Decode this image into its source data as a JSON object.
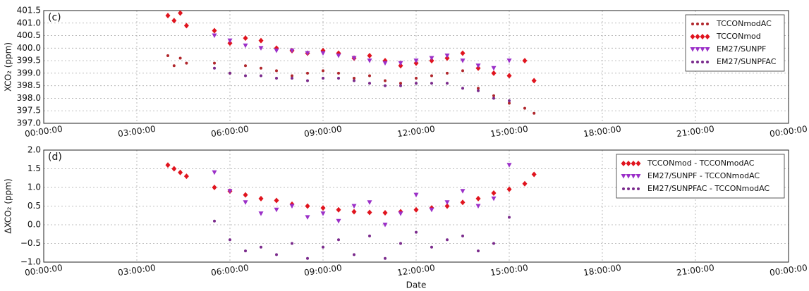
{
  "chart_data": [
    {
      "type": "scatter",
      "panel_label": "(c)",
      "ylabel": "XCO₂ (ppm)",
      "legend": "upper right",
      "grid": true,
      "xlim": [
        0,
        24
      ],
      "xticks": [
        {
          "value": 0,
          "label": "00:00:00"
        },
        {
          "value": 3,
          "label": "03:00:00"
        },
        {
          "value": 6,
          "label": "06:00:00"
        },
        {
          "value": 9,
          "label": "09:00:00"
        },
        {
          "value": 12,
          "label": "12:00:00"
        },
        {
          "value": 15,
          "label": "15:00:00"
        },
        {
          "value": 18,
          "label": "18:00:00"
        },
        {
          "value": 21,
          "label": "21:00:00"
        },
        {
          "value": 24,
          "label": "00:00:00"
        }
      ],
      "ylim": [
        397.0,
        401.5
      ],
      "yticks": [
        {
          "value": 397,
          "label": "397.0"
        },
        397.5,
        {
          "value": 398,
          "label": "398.0"
        },
        398.5,
        {
          "value": 399,
          "label": "399.0"
        },
        399.5,
        {
          "value": 400,
          "label": "400.0"
        },
        400.5,
        {
          "value": 401,
          "label": "401.0"
        },
        401.5
      ],
      "series": [
        {
          "name": "TCCONmodAC",
          "color": "#b0262b",
          "marker": "dot",
          "x": [
            4.0,
            4.2,
            4.4,
            4.6,
            5.5,
            6.0,
            6.5,
            7.0,
            7.5,
            8.0,
            8.5,
            9.0,
            9.5,
            10.0,
            10.5,
            11.0,
            11.5,
            12.0,
            12.5,
            13.0,
            13.5,
            14.0,
            14.5,
            15.0,
            15.5,
            15.8
          ],
          "values": [
            399.7,
            399.3,
            399.6,
            399.4,
            399.4,
            399.0,
            399.3,
            399.2,
            399.1,
            398.9,
            399.0,
            399.1,
            399.0,
            398.8,
            398.9,
            398.7,
            398.6,
            398.8,
            398.9,
            399.0,
            399.1,
            398.4,
            398.1,
            397.8,
            397.6,
            397.4
          ]
        },
        {
          "name": "TCCONmod",
          "color": "#e0141e",
          "marker": "diamond",
          "x": [
            4.0,
            4.2,
            4.4,
            4.6,
            5.5,
            6.0,
            6.5,
            7.0,
            7.5,
            8.0,
            8.5,
            9.0,
            9.5,
            10.0,
            10.5,
            11.0,
            11.5,
            12.0,
            12.5,
            13.0,
            13.5,
            14.0,
            14.5,
            15.0,
            15.5,
            15.8
          ],
          "values": [
            401.3,
            401.1,
            401.4,
            400.9,
            400.7,
            400.2,
            400.4,
            400.3,
            400.0,
            399.9,
            399.8,
            399.9,
            399.8,
            399.6,
            399.7,
            399.5,
            399.3,
            399.4,
            399.5,
            399.6,
            399.8,
            399.2,
            399.0,
            398.9,
            399.5,
            398.7
          ]
        },
        {
          "name": "EM27/SUNPF",
          "color": "#9b30c8",
          "marker": "triangle",
          "x": [
            5.5,
            6.0,
            6.5,
            7.0,
            7.5,
            8.0,
            8.5,
            9.0,
            9.5,
            10.0,
            10.5,
            11.0,
            11.5,
            12.0,
            12.5,
            13.0,
            13.5,
            14.0,
            14.5,
            15.0
          ],
          "values": [
            400.5,
            400.3,
            400.1,
            400.0,
            399.9,
            399.9,
            399.8,
            399.8,
            399.7,
            399.6,
            399.5,
            399.4,
            399.4,
            399.5,
            399.6,
            399.7,
            399.5,
            399.3,
            399.2,
            399.5
          ]
        },
        {
          "name": "EM27/SUNPFAC",
          "color": "#7a2a8c",
          "marker": "dot",
          "x": [
            5.5,
            6.0,
            6.5,
            7.0,
            7.5,
            8.0,
            8.5,
            9.0,
            9.5,
            10.0,
            10.5,
            11.0,
            11.5,
            12.0,
            12.5,
            13.0,
            13.5,
            14.0,
            14.5,
            15.0
          ],
          "values": [
            399.2,
            399.0,
            398.9,
            398.9,
            398.8,
            398.8,
            398.7,
            398.8,
            398.8,
            398.7,
            398.6,
            398.5,
            398.5,
            398.6,
            398.6,
            398.6,
            398.4,
            398.3,
            398.0,
            397.9
          ]
        }
      ]
    },
    {
      "type": "scatter",
      "panel_label": "(d)",
      "ylabel": "ΔXCO₂ (ppm)",
      "xlabel": "Date",
      "legend": "upper right",
      "grid": true,
      "xlim": [
        0,
        24
      ],
      "xticks": [
        {
          "value": 0,
          "label": "00:00:00"
        },
        {
          "value": 3,
          "label": "03:00:00"
        },
        {
          "value": 6,
          "label": "06:00:00"
        },
        {
          "value": 9,
          "label": "09:00:00"
        },
        {
          "value": 12,
          "label": "12:00:00"
        },
        {
          "value": 15,
          "label": "15:00:00"
        },
        {
          "value": 18,
          "label": "18:00:00"
        },
        {
          "value": 21,
          "label": "21:00:00"
        },
        {
          "value": 24,
          "label": "00:00:00"
        }
      ],
      "ylim": [
        -1.0,
        2.0
      ],
      "yticks": [
        {
          "value": -1,
          "label": "−1.0"
        },
        {
          "value": -0.5,
          "label": "−0.5"
        },
        {
          "value": 0,
          "label": "0.0"
        },
        0.5,
        {
          "value": 1,
          "label": "1.0"
        },
        1.5,
        {
          "value": 2,
          "label": "2.0"
        }
      ],
      "series": [
        {
          "name": "TCCONmod - TCCONmodAC",
          "color": "#e0141e",
          "marker": "diamond",
          "x": [
            4.0,
            4.2,
            4.4,
            4.6,
            5.5,
            6.0,
            6.5,
            7.0,
            7.5,
            8.0,
            8.5,
            9.0,
            9.5,
            10.0,
            10.5,
            11.0,
            11.5,
            12.0,
            12.5,
            13.0,
            13.5,
            14.0,
            14.5,
            15.0,
            15.5,
            15.8
          ],
          "values": [
            1.6,
            1.5,
            1.4,
            1.3,
            1.0,
            0.9,
            0.8,
            0.7,
            0.65,
            0.55,
            0.5,
            0.45,
            0.4,
            0.35,
            0.33,
            0.32,
            0.35,
            0.4,
            0.45,
            0.5,
            0.6,
            0.7,
            0.85,
            0.95,
            1.1,
            1.35
          ]
        },
        {
          "name": "EM27/SUNPF - TCCONmodAC",
          "color": "#9b30c8",
          "marker": "triangle",
          "x": [
            5.5,
            6.0,
            6.5,
            7.0,
            7.5,
            8.0,
            8.5,
            9.0,
            9.5,
            10.0,
            10.5,
            11.0,
            11.5,
            12.0,
            12.5,
            13.0,
            13.5,
            14.0,
            14.5,
            15.0
          ],
          "values": [
            1.4,
            0.9,
            0.6,
            0.3,
            0.4,
            0.5,
            0.2,
            0.3,
            0.1,
            0.5,
            0.6,
            0.0,
            0.3,
            0.8,
            0.4,
            0.6,
            0.9,
            0.5,
            0.7,
            1.6
          ]
        },
        {
          "name": "EM27/SUNPFAC - TCCONmodAC",
          "color": "#7a2a8c",
          "marker": "dot",
          "x": [
            5.5,
            6.0,
            6.5,
            7.0,
            7.5,
            8.0,
            8.5,
            9.0,
            9.5,
            10.0,
            10.5,
            11.0,
            11.5,
            12.0,
            12.5,
            13.0,
            13.5,
            14.0,
            14.5,
            15.0
          ],
          "values": [
            0.1,
            -0.4,
            -0.7,
            -0.6,
            -0.8,
            -0.5,
            -0.9,
            -0.6,
            -0.4,
            -0.8,
            -0.3,
            -0.9,
            -0.5,
            -0.2,
            -0.6,
            -0.4,
            -0.3,
            -0.7,
            -0.5,
            0.2
          ]
        }
      ]
    }
  ]
}
